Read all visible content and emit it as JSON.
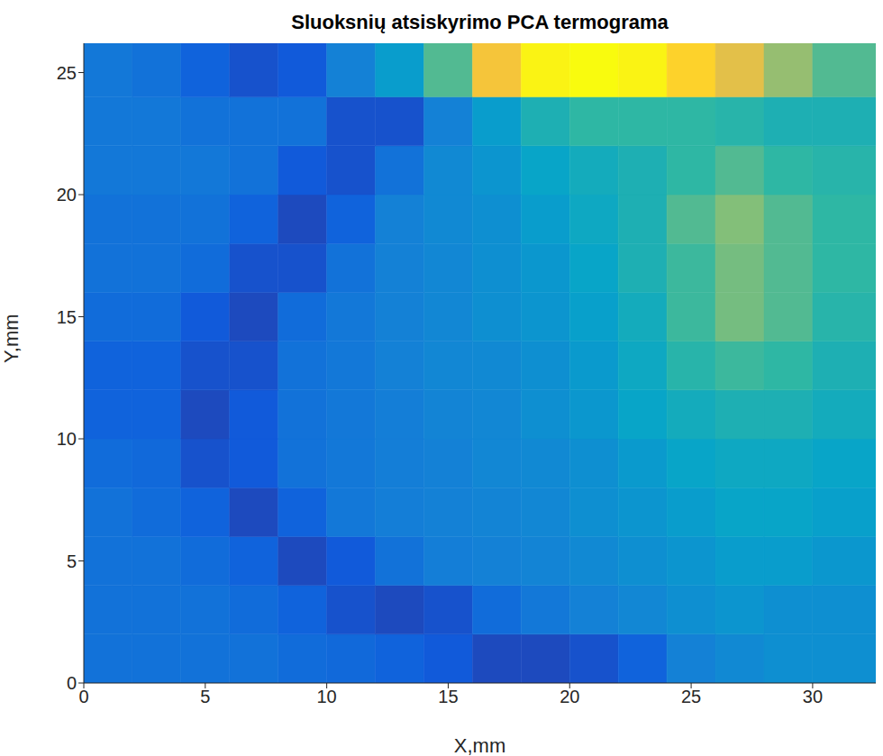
{
  "chart_data": {
    "type": "heatmap",
    "title": "Sluoksnių atsiskyrimo PCA termograma",
    "x_label": "X,mm",
    "y_label": "Y,mm",
    "xlim": [
      0,
      32.6
    ],
    "ylim": [
      0,
      26.2
    ],
    "xticks": [
      0,
      5,
      10,
      15,
      20,
      25,
      30
    ],
    "yticks": [
      0,
      5,
      10,
      15,
      20,
      25
    ],
    "grid": false,
    "x_edges": [
      0,
      2,
      4,
      6,
      8,
      10,
      12,
      14,
      16,
      18,
      20,
      22,
      24,
      26,
      28,
      30,
      32.6
    ],
    "y_edges": [
      0,
      2,
      4,
      6,
      8,
      10,
      12,
      14,
      16,
      18,
      20,
      22,
      24,
      26.2
    ],
    "color_range": [
      0,
      1
    ],
    "colors": [
      "#352a87",
      "#0f5cdd",
      "#1481d6",
      "#06a4ca",
      "#2eb7a4",
      "#87bf77",
      "#d1bb59",
      "#fec832",
      "#f9fb0e"
    ],
    "cells": [
      [
        0.2,
        0.2,
        0.2,
        0.2,
        0.18,
        0.17,
        0.15,
        0.12,
        0.08,
        0.08,
        0.1,
        0.15,
        0.25,
        0.28,
        0.3,
        0.3
      ],
      [
        0.2,
        0.2,
        0.2,
        0.18,
        0.15,
        0.1,
        0.08,
        0.1,
        0.18,
        0.22,
        0.25,
        0.27,
        0.3,
        0.32,
        0.3,
        0.3
      ],
      [
        0.2,
        0.2,
        0.18,
        0.15,
        0.08,
        0.12,
        0.2,
        0.24,
        0.25,
        0.26,
        0.28,
        0.3,
        0.32,
        0.35,
        0.35,
        0.33
      ],
      [
        0.2,
        0.18,
        0.15,
        0.08,
        0.15,
        0.22,
        0.24,
        0.25,
        0.26,
        0.27,
        0.3,
        0.32,
        0.35,
        0.38,
        0.38,
        0.36
      ],
      [
        0.18,
        0.17,
        0.1,
        0.12,
        0.2,
        0.22,
        0.24,
        0.25,
        0.27,
        0.28,
        0.3,
        0.34,
        0.38,
        0.4,
        0.4,
        0.38
      ],
      [
        0.15,
        0.15,
        0.08,
        0.12,
        0.2,
        0.22,
        0.24,
        0.26,
        0.27,
        0.3,
        0.33,
        0.38,
        0.42,
        0.45,
        0.45,
        0.42
      ],
      [
        0.15,
        0.15,
        0.1,
        0.1,
        0.2,
        0.22,
        0.25,
        0.27,
        0.28,
        0.3,
        0.34,
        0.4,
        0.48,
        0.52,
        0.5,
        0.45
      ],
      [
        0.18,
        0.18,
        0.12,
        0.08,
        0.18,
        0.22,
        0.25,
        0.27,
        0.3,
        0.32,
        0.36,
        0.42,
        0.52,
        0.6,
        0.55,
        0.48
      ],
      [
        0.2,
        0.2,
        0.18,
        0.1,
        0.1,
        0.2,
        0.25,
        0.27,
        0.3,
        0.33,
        0.38,
        0.45,
        0.52,
        0.6,
        0.55,
        0.5
      ],
      [
        0.2,
        0.2,
        0.2,
        0.15,
        0.08,
        0.15,
        0.25,
        0.28,
        0.3,
        0.35,
        0.4,
        0.45,
        0.55,
        0.62,
        0.55,
        0.5
      ],
      [
        0.22,
        0.22,
        0.22,
        0.2,
        0.12,
        0.1,
        0.2,
        0.28,
        0.32,
        0.38,
        0.42,
        0.45,
        0.5,
        0.55,
        0.5,
        0.48
      ],
      [
        0.22,
        0.22,
        0.2,
        0.2,
        0.2,
        0.1,
        0.1,
        0.25,
        0.35,
        0.45,
        0.5,
        0.5,
        0.5,
        0.48,
        0.45,
        0.45
      ],
      [
        0.22,
        0.2,
        0.15,
        0.1,
        0.12,
        0.25,
        0.35,
        0.55,
        0.85,
        0.98,
        1.0,
        0.98,
        0.9,
        0.8,
        0.65,
        0.55
      ]
    ]
  }
}
